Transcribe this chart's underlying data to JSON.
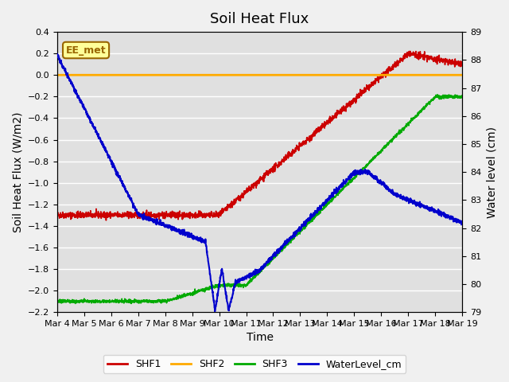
{
  "title": "Soil Heat Flux",
  "xlabel": "Time",
  "ylabel_left": "Soil Heat Flux (W/m2)",
  "ylabel_right": "Water level (cm)",
  "ylim_left": [
    -2.2,
    0.4
  ],
  "ylim_right": [
    79.0,
    89.0
  ],
  "yticks_left": [
    0.4,
    0.2,
    0.0,
    -0.2,
    -0.4,
    -0.6,
    -0.8,
    -1.0,
    -1.2,
    -1.4,
    -1.6,
    -1.8,
    -2.0,
    -2.2
  ],
  "yticks_right": [
    79.0,
    80.0,
    81.0,
    82.0,
    83.0,
    84.0,
    85.0,
    86.0,
    87.0,
    88.0,
    89.0
  ],
  "xtick_positions": [
    0,
    1,
    2,
    3,
    4,
    5,
    6,
    7,
    8,
    9,
    10,
    11,
    12,
    13,
    14,
    15
  ],
  "xtick_labels": [
    "Mar 4",
    "Mar 5",
    "Mar 6",
    "Mar 7",
    "Mar 8",
    "Mar 9",
    "Mar 10",
    "Mar 11",
    "Mar 12",
    "Mar 13",
    "Mar 14",
    "Mar 15",
    "Mar 16",
    "Mar 17",
    "Mar 18",
    "Mar 19"
  ],
  "xlim": [
    0,
    15
  ],
  "n_days": 15,
  "legend_entries": [
    "SHF1",
    "SHF2",
    "SHF3",
    "WaterLevel_cm"
  ],
  "colors": {
    "SHF1": "#cc0000",
    "SHF2": "#ffaa00",
    "SHF3": "#00aa00",
    "WaterLevel_cm": "#0000cc"
  },
  "watermark_text": "EE_met",
  "watermark_bg": "#ffff99",
  "watermark_border": "#996600",
  "background_color": "#e0e0e0",
  "grid_color": "#ffffff",
  "title_fontsize": 13,
  "axis_fontsize": 10,
  "tick_fontsize": 8
}
